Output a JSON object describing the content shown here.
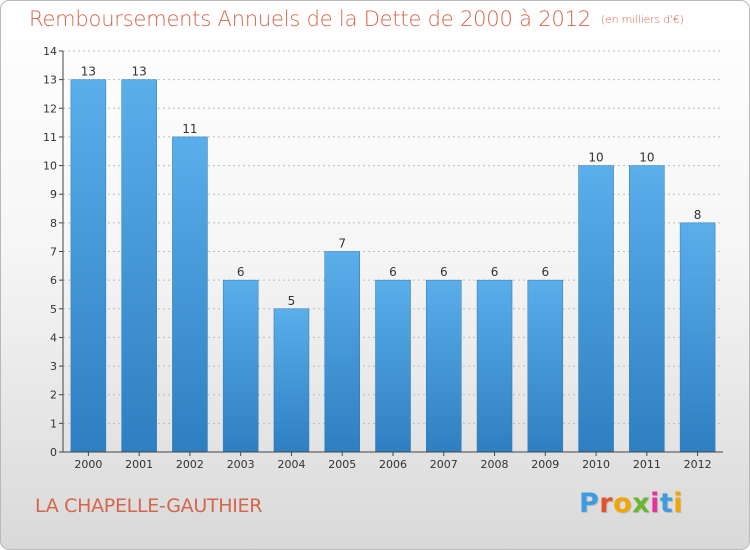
{
  "title": "Remboursements Annuels de la Dette de 2000 à 2012",
  "title_unit": "(en milliers d'€)",
  "location": "LA CHAPELLE-GAUTHIER",
  "logo": {
    "text": "Proxiti",
    "letter_colors": [
      "#3f9be0",
      "#e2542e",
      "#f0a500",
      "#6bb52f",
      "#e8339a",
      "#3f9be0",
      "#f0a500"
    ]
  },
  "colors": {
    "bar_light": "#5aaeea",
    "bar_dark": "#2e7fc1",
    "axis": "#444444",
    "grid": "#bdbdbd",
    "title": "#d4664b"
  },
  "chart_data": {
    "type": "bar",
    "categories": [
      "2000",
      "2001",
      "2002",
      "2003",
      "2004",
      "2005",
      "2006",
      "2007",
      "2008",
      "2009",
      "2010",
      "2011",
      "2012"
    ],
    "values": [
      13,
      13,
      11,
      6,
      5,
      7,
      6,
      6,
      6,
      6,
      10,
      10,
      8
    ],
    "ylim": [
      0,
      14
    ],
    "yticks": [
      0,
      1,
      2,
      3,
      4,
      5,
      6,
      7,
      8,
      9,
      10,
      11,
      12,
      13,
      14
    ],
    "grid": "horizontal dashes at ticks",
    "xlabel": "",
    "ylabel": ""
  }
}
